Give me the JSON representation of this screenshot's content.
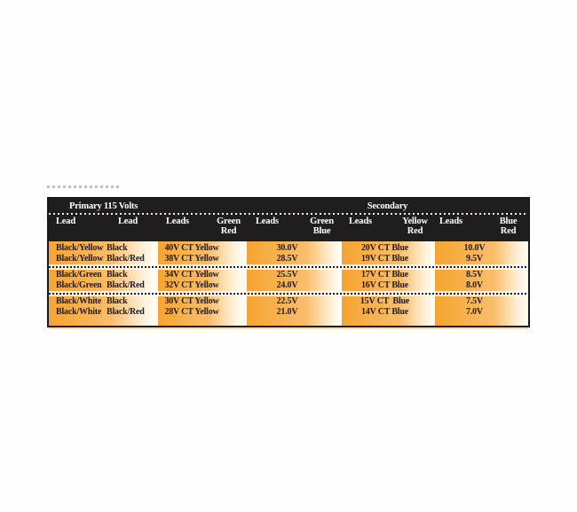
{
  "colors": {
    "header_bg": "#201d1e",
    "header_text": "#ffffff",
    "band_orange": "#f6a42f",
    "band_cream": "#fffbf0",
    "data_text": "#1b1b33",
    "border": "#1c191a"
  },
  "header": {
    "primary_title": "Primary 115 Volts",
    "secondary_title": "Secondary",
    "columns": [
      {
        "label": "Lead"
      },
      {
        "label": "Lead"
      },
      {
        "label": "Leads"
      },
      {
        "line1": "Green",
        "line2": "Red"
      },
      {
        "label": "Leads"
      },
      {
        "line1": "Green",
        "line2": "Blue"
      },
      {
        "label": "Leads"
      },
      {
        "line1": "Yellow",
        "line2": "Red"
      },
      {
        "label": "Leads"
      },
      {
        "line1": "Blue",
        "line2": "Red"
      }
    ]
  },
  "rows": [
    {
      "primary_lead_1": "Black/Yellow",
      "primary_lead_2": "Black",
      "green_red_leads": "40V CT Yellow",
      "green_blue_leads": "30.0V",
      "yellow_red_leads": "20V CT Blue",
      "blue_red_leads": "10.0V"
    },
    {
      "primary_lead_1": "Black/Yellow",
      "primary_lead_2": "Black/Red",
      "green_red_leads": "38V CT Yellow",
      "green_blue_leads": "28.5V",
      "yellow_red_leads": "19V CT Blue",
      "blue_red_leads": "9.5V"
    },
    {
      "primary_lead_1": "Black/Green",
      "primary_lead_2": "Black",
      "green_red_leads": "34V CT Yellow",
      "green_blue_leads": "25.5V",
      "yellow_red_leads": "17V CT Blue",
      "blue_red_leads": "8.5V"
    },
    {
      "primary_lead_1": "Black/Green",
      "primary_lead_2": "Black/Red",
      "green_red_leads": "32V CT Yellow",
      "green_blue_leads": "24.0V",
      "yellow_red_leads": "16V CT Blue",
      "blue_red_leads": "8.0V"
    },
    {
      "primary_lead_1": "Black/White",
      "primary_lead_2": "Black",
      "green_red_leads": "30V CT Yellow",
      "green_blue_leads": "22.5V",
      "yellow_red_leads": "15V CT  Blue",
      "blue_red_leads": "7.5V"
    },
    {
      "primary_lead_1": "Black/White",
      "primary_lead_2": "Black/Red",
      "green_red_leads": "28V CT Yellow",
      "green_blue_leads": "21.0V",
      "yellow_red_leads": "14V CT Blue",
      "blue_red_leads": "7.0V"
    }
  ]
}
